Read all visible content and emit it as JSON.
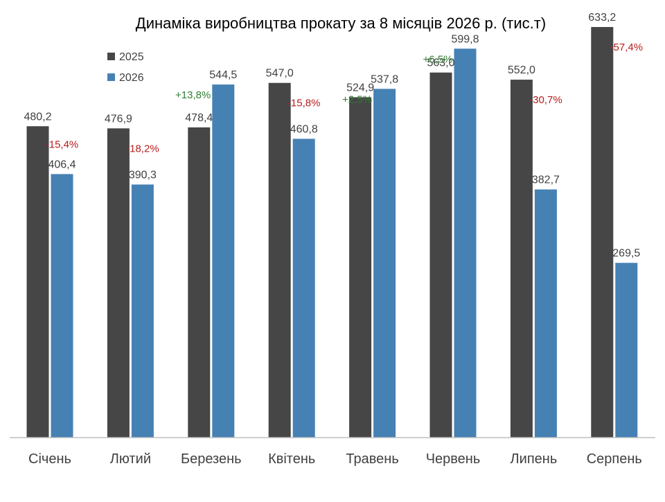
{
  "chart_data": {
    "type": "bar",
    "title": "Динаміка виробництва прокату за 8 місяців 2026 р. (тис.т)",
    "xlabel": "",
    "ylabel": "",
    "ylim": [
      0,
      700
    ],
    "grid": false,
    "legend_position": "top-left",
    "categories": [
      "Січень",
      "Лютий",
      "Березень",
      "Квітень",
      "Травень",
      "Червень",
      "Липень",
      "Серпень"
    ],
    "series": [
      {
        "name": "2025",
        "color": "#464646",
        "values": [
          480.2,
          476.9,
          478.4,
          547.0,
          524.9,
          563.0,
          552.0,
          633.2
        ],
        "labels": [
          "480,2",
          "476,9",
          "478,4",
          "547,0",
          "524,9",
          "563,0",
          "552,0",
          "633,2"
        ]
      },
      {
        "name": "2026",
        "color": "#4681b4",
        "values": [
          406.4,
          390.3,
          544.5,
          460.8,
          537.8,
          599.8,
          382.7,
          269.5
        ],
        "labels": [
          "406,4",
          "390,3",
          "544,5",
          "460,8",
          "537,8",
          "599,8",
          "382,7",
          "269,5"
        ]
      }
    ],
    "changes": [
      {
        "label": "-15,4%",
        "value": -15.4
      },
      {
        "label": "-18,2%",
        "value": -18.2
      },
      {
        "label": "+13,8%",
        "value": 13.8
      },
      {
        "label": "-15,8%",
        "value": -15.8
      },
      {
        "label": "+2,5%",
        "value": 2.5
      },
      {
        "label": "+6,5%",
        "value": 6.5
      },
      {
        "label": "-30,7%",
        "value": -30.7
      },
      {
        "label": "-57,4%",
        "value": -57.4
      }
    ],
    "colors": {
      "positive": "#2e7d32",
      "negative": "#b71c1c",
      "value_label": "#404040",
      "axis": "#bfbfbf",
      "category_label": "#404040",
      "title": "#000000"
    }
  }
}
